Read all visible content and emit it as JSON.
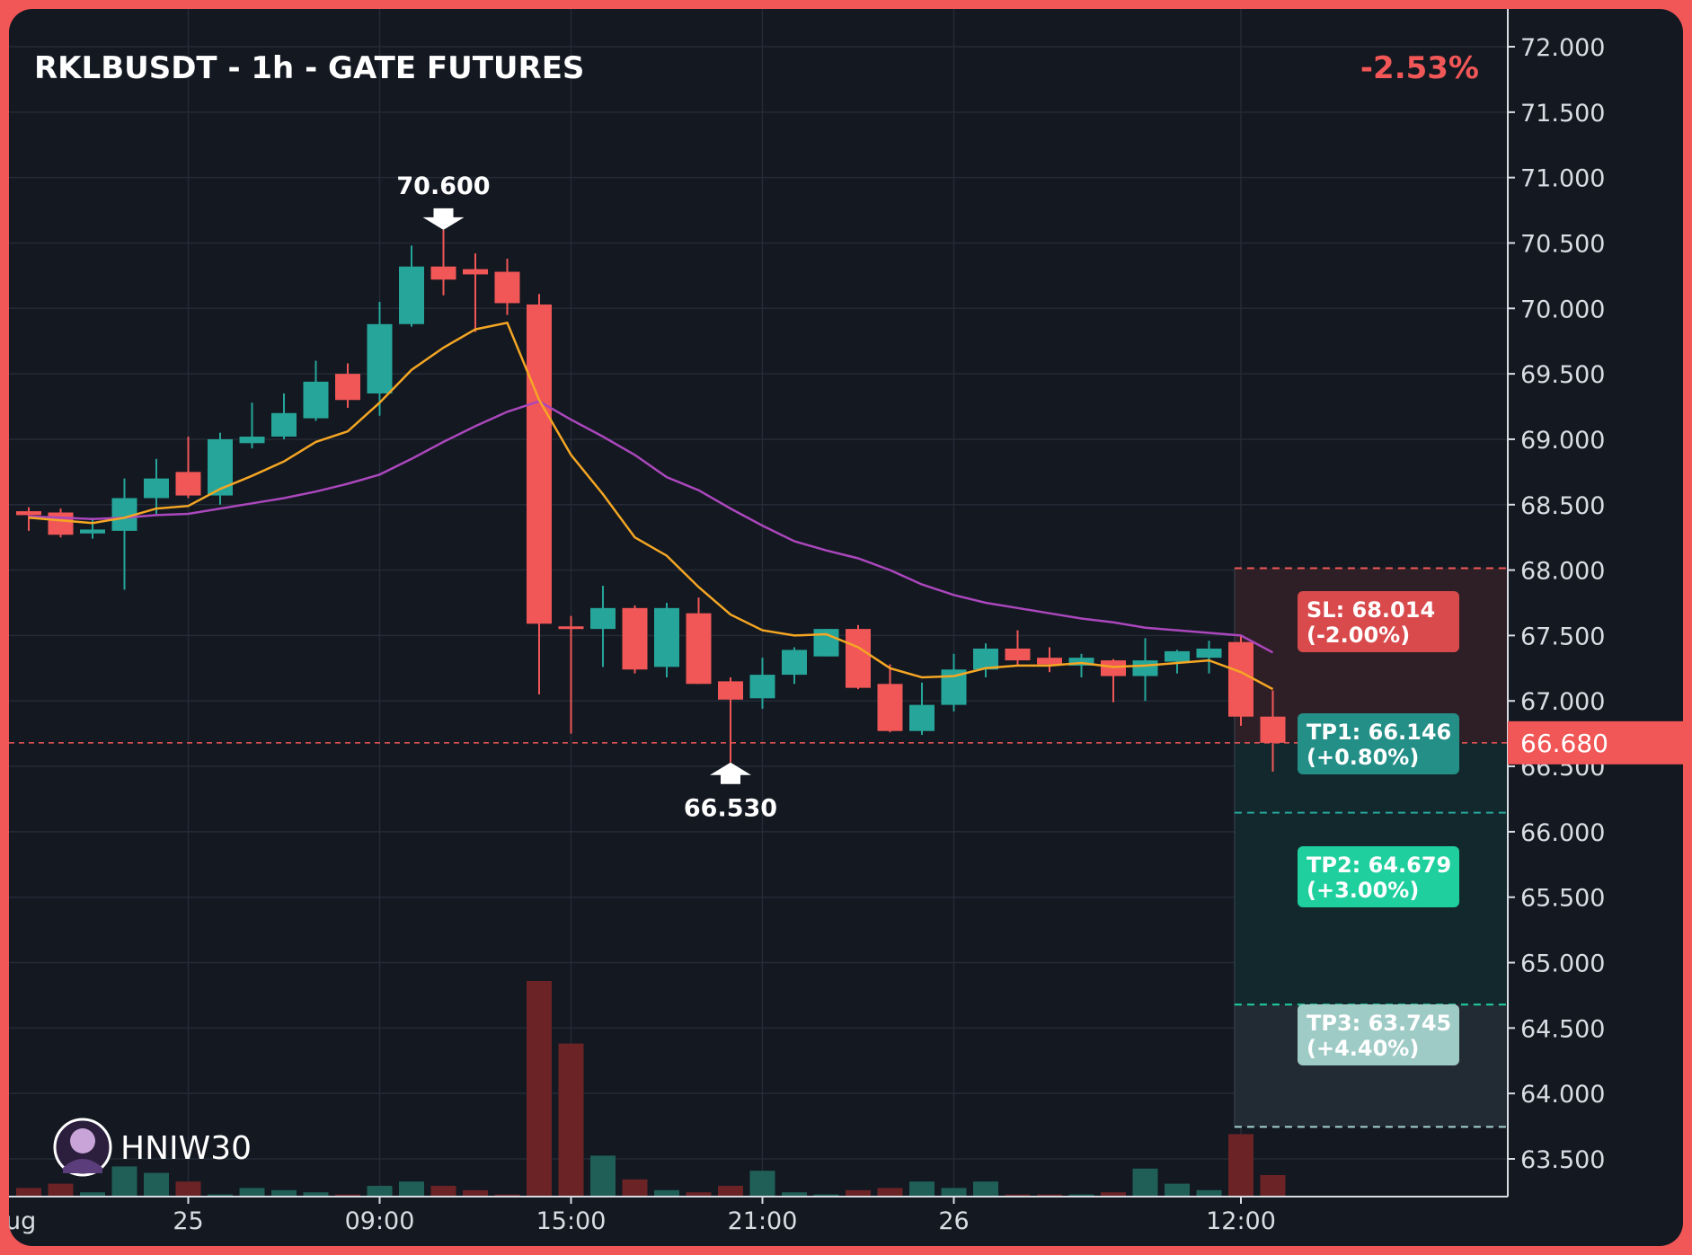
{
  "header": {
    "title": "RKLBUSDT - 1h - GATE FUTURES",
    "change": "-2.53%"
  },
  "watermark": {
    "text": "HNIW30"
  },
  "colors": {
    "up": "#26a69a",
    "down": "#f15757",
    "ema_fast": "#f5a623",
    "ema_slow": "#ab47bc",
    "background": "#131821"
  },
  "chart_data": {
    "type": "candlestick",
    "y_axis": {
      "ylim": [
        63.2,
        72.2
      ],
      "ticks": [
        "72.000",
        "71.500",
        "71.000",
        "70.500",
        "70.000",
        "69.500",
        "69.000",
        "68.500",
        "68.000",
        "67.500",
        "67.000",
        "66.500",
        "66.000",
        "65.500",
        "65.000",
        "64.500",
        "64.000",
        "63.500"
      ]
    },
    "x_axis": {
      "ticks": [
        {
          "label": "ug",
          "index": -0.5
        },
        {
          "label": "25",
          "index": 5
        },
        {
          "label": "09:00",
          "index": 11
        },
        {
          "label": "15:00",
          "index": 17
        },
        {
          "label": "21:00",
          "index": 23
        },
        {
          "label": "26",
          "index": 29
        },
        {
          "label": "12:00",
          "index": 38
        }
      ]
    },
    "candles": [
      {
        "o": 68.45,
        "h": 68.48,
        "l": 68.3,
        "c": 68.42
      },
      {
        "o": 68.44,
        "h": 68.47,
        "l": 68.25,
        "c": 68.27
      },
      {
        "o": 68.28,
        "h": 68.4,
        "l": 68.24,
        "c": 68.31
      },
      {
        "o": 68.3,
        "h": 68.7,
        "l": 67.85,
        "c": 68.55
      },
      {
        "o": 68.55,
        "h": 68.85,
        "l": 68.42,
        "c": 68.7
      },
      {
        "o": 68.75,
        "h": 69.02,
        "l": 68.55,
        "c": 68.57
      },
      {
        "o": 68.57,
        "h": 69.05,
        "l": 68.5,
        "c": 69.0
      },
      {
        "o": 68.97,
        "h": 69.28,
        "l": 68.93,
        "c": 69.02
      },
      {
        "o": 69.02,
        "h": 69.35,
        "l": 69.0,
        "c": 69.2
      },
      {
        "o": 69.16,
        "h": 69.6,
        "l": 69.14,
        "c": 69.44
      },
      {
        "o": 69.5,
        "h": 69.58,
        "l": 69.24,
        "c": 69.3
      },
      {
        "o": 69.35,
        "h": 70.05,
        "l": 69.18,
        "c": 69.88
      },
      {
        "o": 69.88,
        "h": 70.48,
        "l": 69.86,
        "c": 70.32
      },
      {
        "o": 70.32,
        "h": 70.6,
        "l": 70.1,
        "c": 70.22
      },
      {
        "o": 70.3,
        "h": 70.42,
        "l": 69.82,
        "c": 70.26
      },
      {
        "o": 70.28,
        "h": 70.38,
        "l": 69.95,
        "c": 70.04
      },
      {
        "o": 70.03,
        "h": 70.11,
        "l": 67.05,
        "c": 67.59
      },
      {
        "o": 67.57,
        "h": 67.65,
        "l": 66.75,
        "c": 67.55
      },
      {
        "o": 67.55,
        "h": 67.88,
        "l": 67.26,
        "c": 67.71
      },
      {
        "o": 67.71,
        "h": 67.73,
        "l": 67.21,
        "c": 67.24
      },
      {
        "o": 67.26,
        "h": 67.75,
        "l": 67.18,
        "c": 67.71
      },
      {
        "o": 67.67,
        "h": 67.79,
        "l": 67.13,
        "c": 67.13
      },
      {
        "o": 67.15,
        "h": 67.18,
        "l": 66.53,
        "c": 67.01
      },
      {
        "o": 67.02,
        "h": 67.33,
        "l": 66.94,
        "c": 67.2
      },
      {
        "o": 67.2,
        "h": 67.41,
        "l": 67.13,
        "c": 67.39
      },
      {
        "o": 67.34,
        "h": 67.55,
        "l": 67.34,
        "c": 67.55
      },
      {
        "o": 67.55,
        "h": 67.58,
        "l": 67.09,
        "c": 67.1
      },
      {
        "o": 67.13,
        "h": 67.28,
        "l": 66.76,
        "c": 66.77
      },
      {
        "o": 66.77,
        "h": 67.14,
        "l": 66.74,
        "c": 66.97
      },
      {
        "o": 66.97,
        "h": 67.36,
        "l": 66.92,
        "c": 67.24
      },
      {
        "o": 67.24,
        "h": 67.44,
        "l": 67.18,
        "c": 67.4
      },
      {
        "o": 67.4,
        "h": 67.54,
        "l": 67.27,
        "c": 67.31
      },
      {
        "o": 67.33,
        "h": 67.41,
        "l": 67.22,
        "c": 67.28
      },
      {
        "o": 67.27,
        "h": 67.36,
        "l": 67.18,
        "c": 67.33
      },
      {
        "o": 67.31,
        "h": 67.32,
        "l": 66.99,
        "c": 67.19
      },
      {
        "o": 67.19,
        "h": 67.48,
        "l": 67.0,
        "c": 67.31
      },
      {
        "o": 67.3,
        "h": 67.39,
        "l": 67.21,
        "c": 67.38
      },
      {
        "o": 67.33,
        "h": 67.46,
        "l": 67.21,
        "c": 67.4
      },
      {
        "o": 67.45,
        "h": 67.5,
        "l": 66.81,
        "c": 66.88
      },
      {
        "o": 66.88,
        "h": 67.08,
        "l": 66.46,
        "c": 66.68
      }
    ],
    "volume": [
      4,
      6,
      2,
      14,
      11,
      7,
      1,
      4,
      3,
      2,
      1,
      5,
      7,
      5,
      3,
      1,
      100,
      71,
      19,
      8,
      3,
      2,
      5,
      12,
      2,
      1,
      3,
      4,
      7,
      4,
      7,
      1,
      1,
      1,
      2,
      13,
      6,
      3,
      29,
      10
    ],
    "ema_fast": [
      68.4,
      68.38,
      68.36,
      68.4,
      68.47,
      68.49,
      68.62,
      68.72,
      68.83,
      68.98,
      69.06,
      69.28,
      69.53,
      69.7,
      69.84,
      69.89,
      69.3,
      68.88,
      68.58,
      68.25,
      68.11,
      67.87,
      67.66,
      67.54,
      67.5,
      67.51,
      67.41,
      67.25,
      67.18,
      67.19,
      67.25,
      67.27,
      67.27,
      67.29,
      67.26,
      67.27,
      67.29,
      67.31,
      67.22,
      67.09
    ],
    "ema_slow": [
      68.41,
      68.4,
      68.39,
      68.4,
      68.42,
      68.43,
      68.47,
      68.51,
      68.55,
      68.6,
      68.66,
      68.73,
      68.85,
      68.98,
      69.1,
      69.21,
      69.29,
      69.15,
      69.02,
      68.88,
      68.71,
      68.61,
      68.47,
      68.34,
      68.22,
      68.15,
      68.09,
      68.0,
      67.89,
      67.81,
      67.75,
      67.71,
      67.67,
      67.63,
      67.6,
      67.56,
      67.54,
      67.52,
      67.5,
      67.37
    ],
    "annotations": [
      {
        "label": "70.600",
        "index": 13,
        "price": 70.6,
        "position": "above"
      },
      {
        "label": "66.530",
        "index": 22,
        "price": 66.53,
        "position": "below"
      }
    ],
    "current_price": {
      "label": "66.680",
      "value": 66.68
    },
    "levels": [
      {
        "name": "SL",
        "label": "SL: 68.014",
        "sub": "(-2.00%)",
        "price": 68.014,
        "color": "#f15757"
      },
      {
        "name": "TP1",
        "label": "TP1: 66.146",
        "sub": "(+0.80%)",
        "price": 66.146,
        "color": "#26a69a"
      },
      {
        "name": "TP2",
        "label": "TP2: 64.679",
        "sub": "(+3.00%)",
        "price": 64.679,
        "color": "#1fd1a0"
      },
      {
        "name": "TP3",
        "label": "TP3: 63.745",
        "sub": "(+4.40%)",
        "price": 63.745,
        "color": "#a7d5d0"
      }
    ]
  }
}
